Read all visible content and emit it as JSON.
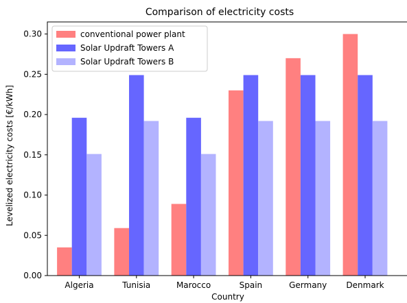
{
  "chart_data": {
    "type": "bar",
    "title": "Comparison of electricity costs",
    "xlabel": "Country",
    "ylabel": "Levelized electricity costs [€/kWh]",
    "categories": [
      "Algeria",
      "Tunisia",
      "Marocco",
      "Spain",
      "Germany",
      "Denmark"
    ],
    "ylim": [
      0,
      0.315
    ],
    "yticks": [
      "0.00",
      "0.05",
      "0.10",
      "0.15",
      "0.20",
      "0.25",
      "0.30"
    ],
    "grid": false,
    "legend_position": "top-left",
    "series": [
      {
        "name": "conventional power plant",
        "color": "#ff8080",
        "values": [
          0.035,
          0.059,
          0.089,
          0.23,
          0.27,
          0.3
        ]
      },
      {
        "name": "Solar Updraft Towers A",
        "color": "#6666ff",
        "values": [
          0.196,
          0.249,
          0.196,
          0.249,
          0.249,
          0.249
        ]
      },
      {
        "name": "Solar Updraft Towers B",
        "color": "#b3b3ff",
        "values": [
          0.151,
          0.192,
          0.151,
          0.192,
          0.192,
          0.192
        ]
      }
    ]
  }
}
